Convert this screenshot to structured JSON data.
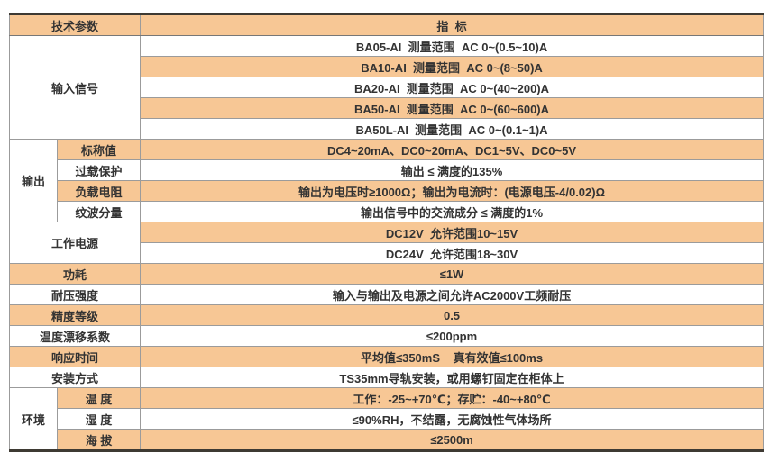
{
  "colors": {
    "row_shade": "#f7c795",
    "grid_line": "#9b9b9b",
    "frame_border": "#3e3a33",
    "text": "#333333",
    "background": "#ffffff"
  },
  "header": {
    "param": "技术参数",
    "indicator": "指  标"
  },
  "input_signal": {
    "label": "输入信号",
    "rows": [
      "BA05-AI  测量范围  AC 0~(0.5~10)A",
      "BA10-AI  测量范围  AC 0~(8~50)A",
      "BA20-AI  测量范围  AC 0~(40~200)A",
      "BA50-AI  测量范围  AC 0~(60~600)A",
      "BA50L-AI  测量范围  AC 0~(0.1~1)A"
    ]
  },
  "output": {
    "label": "输出",
    "rows": [
      {
        "name": "标称值",
        "value": "DC4~20mA、DC0~20mA、DC1~5V、DC0~5V"
      },
      {
        "name": "过载保护",
        "value": "输出 ≤ 满度的135%"
      },
      {
        "name": "负载电阻",
        "value": "输出为电压时≥1000Ω；输出为电流时：(电源电压-4/0.02)Ω"
      },
      {
        "name": "纹波分量",
        "value": "输出信号中的交流成分 ≤ 满度的1%"
      }
    ]
  },
  "power": {
    "label": "工作电源",
    "rows": [
      "DC12V  允许范围10~15V",
      "DC24V  允许范围18~30V"
    ]
  },
  "simple_rows": [
    {
      "name": "功耗",
      "value": "≤1W"
    },
    {
      "name": "耐压强度",
      "value": "输入与输出及电源之间允许AC2000V工频耐压"
    },
    {
      "name": "精度等级",
      "value": "0.5"
    },
    {
      "name": "温度漂移系数",
      "value": "≤200ppm"
    },
    {
      "name": "响应时间",
      "value": "平均值≤350mS    真有效值≤100ms"
    },
    {
      "name": "安装方式",
      "value": "TS35mm导轨安装，或用螺钉固定在柜体上"
    }
  ],
  "environment": {
    "label": "环境",
    "rows": [
      {
        "name": "温 度",
        "value": "工作：-25~+70℃；存贮：-40~+80℃"
      },
      {
        "name": "湿 度",
        "value": "≤90%RH，不结露，无腐蚀性气体场所"
      },
      {
        "name": "海 拔",
        "value": "≤2500m"
      }
    ]
  }
}
